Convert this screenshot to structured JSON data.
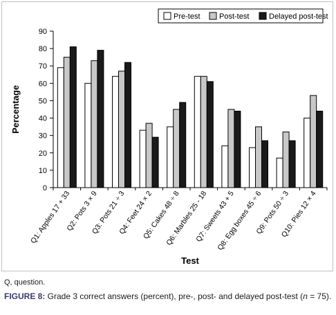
{
  "chart_data": {
    "type": "bar",
    "title": "",
    "xlabel": "Test",
    "ylabel": "Percentage",
    "ylim": [
      0,
      90
    ],
    "yticks": [
      0,
      10,
      20,
      30,
      40,
      50,
      60,
      70,
      80,
      90
    ],
    "grid": false,
    "legend_position": "top-right",
    "categories": [
      "Q1: Apples 17 + 33",
      "Q2: Pots 3 × 9",
      "Q3: Pots 21 ÷ 3",
      "Q4: Feet 24 × 2",
      "Q5: Cakes 48 ÷ 8",
      "Q6: Marbles 25 - 18",
      "Q7: Sweets 43 + 5",
      "Q8: Egg boxes 45 ÷ 6",
      "Q9: Pots 50 ÷ 3",
      "Q10: Pies 12 × 4"
    ],
    "series": [
      {
        "name": "Pre-test",
        "color": "#ffffff",
        "values": [
          69,
          60,
          64,
          33,
          35,
          64,
          24,
          23,
          17,
          40
        ]
      },
      {
        "name": "Post-test",
        "color": "#c8c8c8",
        "values": [
          75,
          73,
          67,
          37,
          45,
          64,
          45,
          35,
          32,
          53
        ]
      },
      {
        "name": "Delayed post-test",
        "color": "#1a1a1a",
        "values": [
          81,
          79,
          72,
          29,
          49,
          61,
          44,
          27,
          27,
          44
        ]
      }
    ]
  },
  "footnote": "Q, question.",
  "caption": {
    "label": "FIGURE 8:",
    "text_before_n": " Grade 3 correct answers (percent), pre-, post- and delayed post-test (",
    "n_symbol": "n",
    "text_after_n": " = 75)."
  }
}
